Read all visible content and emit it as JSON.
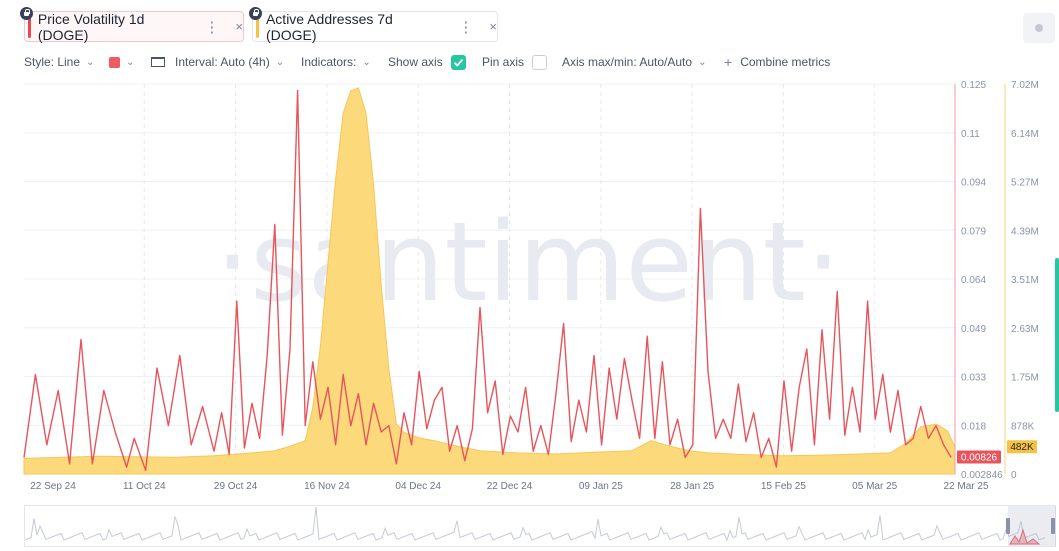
{
  "tabs": [
    {
      "label": "Price Volatility 1d (DOGE)",
      "color": "#e84a55",
      "more": "⋮",
      "close": "×"
    },
    {
      "label": "Active Addresses 7d (DOGE)",
      "color": "#f5c342",
      "more": "⋮",
      "close": "×"
    }
  ],
  "toolbar": {
    "style": "Style: Line",
    "color_swatch": "#ef5a64",
    "interval": "Interval: Auto (4h)",
    "indicators": "Indicators:",
    "show_axis": "Show axis",
    "show_axis_checked": true,
    "pin_axis": "Pin axis",
    "pin_axis_checked": false,
    "axis_maxmin": "Axis max/min: Auto/Auto",
    "combine": "Combine metrics",
    "plus": "+",
    "chevron": "⌄"
  },
  "watermark": "·santiment·",
  "chart_data": {
    "type": "line",
    "x_ticks": [
      "22 Sep 24",
      "11 Oct 24",
      "29 Oct 24",
      "16 Nov 24",
      "04 Dec 24",
      "22 Dec 24",
      "09 Jan 25",
      "28 Jan 25",
      "15 Feb 25",
      "05 Mar 25",
      "22 Mar 25"
    ],
    "series": [
      {
        "name": "Price Volatility 1d (DOGE)",
        "color": "#e8545c",
        "axis": "left",
        "y_ticks": [
          "0.125",
          "0.11",
          "0.094",
          "0.079",
          "0.064",
          "0.049",
          "0.033",
          "0.018",
          "0.002846"
        ],
        "ylim": [
          0.002846,
          0.125
        ],
        "last_value_label": "0.00826",
        "peaks": [
          [
            0,
            0.008
          ],
          [
            3,
            0.034
          ],
          [
            6,
            0.012
          ],
          [
            9,
            0.029
          ],
          [
            12,
            0.006
          ],
          [
            15,
            0.045
          ],
          [
            18,
            0.006
          ],
          [
            21,
            0.029
          ],
          [
            24,
            0.016
          ],
          [
            27,
            0.005
          ],
          [
            29,
            0.014
          ],
          [
            32,
            0.004
          ],
          [
            35,
            0.036
          ],
          [
            38,
            0.018
          ],
          [
            41,
            0.04
          ],
          [
            44,
            0.012
          ],
          [
            47,
            0.024
          ],
          [
            50,
            0.01
          ],
          [
            52,
            0.022
          ],
          [
            54,
            0.009
          ],
          [
            56,
            0.057
          ],
          [
            58,
            0.011
          ],
          [
            60,
            0.025
          ],
          [
            62,
            0.014
          ],
          [
            64,
            0.04
          ],
          [
            66,
            0.081
          ],
          [
            68,
            0.015
          ],
          [
            70,
            0.042
          ],
          [
            72,
            0.123
          ],
          [
            74,
            0.018
          ],
          [
            76,
            0.038
          ],
          [
            78,
            0.02
          ],
          [
            80,
            0.03
          ],
          [
            82,
            0.012
          ],
          [
            84,
            0.034
          ],
          [
            86,
            0.018
          ],
          [
            88,
            0.028
          ],
          [
            90,
            0.012
          ],
          [
            92,
            0.025
          ],
          [
            94,
            0.016
          ],
          [
            96,
            0.018
          ],
          [
            98,
            0.006
          ],
          [
            100,
            0.022
          ],
          [
            102,
            0.012
          ],
          [
            104,
            0.035
          ],
          [
            106,
            0.017
          ],
          [
            108,
            0.026
          ],
          [
            110,
            0.03
          ],
          [
            112,
            0.01
          ],
          [
            114,
            0.018
          ],
          [
            116,
            0.007
          ],
          [
            118,
            0.017
          ],
          [
            120,
            0.055
          ],
          [
            122,
            0.022
          ],
          [
            124,
            0.032
          ],
          [
            126,
            0.009
          ],
          [
            128,
            0.021
          ],
          [
            130,
            0.016
          ],
          [
            132,
            0.03
          ],
          [
            134,
            0.01
          ],
          [
            136,
            0.018
          ],
          [
            138,
            0.009
          ],
          [
            140,
            0.028
          ],
          [
            142,
            0.05
          ],
          [
            144,
            0.013
          ],
          [
            146,
            0.026
          ],
          [
            148,
            0.016
          ],
          [
            150,
            0.04
          ],
          [
            152,
            0.012
          ],
          [
            154,
            0.036
          ],
          [
            156,
            0.02
          ],
          [
            158,
            0.039
          ],
          [
            160,
            0.026
          ],
          [
            162,
            0.014
          ],
          [
            164,
            0.046
          ],
          [
            166,
            0.014
          ],
          [
            168,
            0.038
          ],
          [
            170,
            0.012
          ],
          [
            172,
            0.02
          ],
          [
            174,
            0.008
          ],
          [
            176,
            0.012
          ],
          [
            178,
            0.086
          ],
          [
            180,
            0.035
          ],
          [
            182,
            0.014
          ],
          [
            184,
            0.02
          ],
          [
            186,
            0.014
          ],
          [
            188,
            0.031
          ],
          [
            190,
            0.013
          ],
          [
            192,
            0.022
          ],
          [
            194,
            0.008
          ],
          [
            196,
            0.014
          ],
          [
            198,
            0.005
          ],
          [
            200,
            0.032
          ],
          [
            202,
            0.01
          ],
          [
            204,
            0.03
          ],
          [
            206,
            0.042
          ],
          [
            208,
            0.012
          ],
          [
            210,
            0.048
          ],
          [
            212,
            0.02
          ],
          [
            214,
            0.06
          ],
          [
            216,
            0.015
          ],
          [
            218,
            0.03
          ],
          [
            220,
            0.016
          ],
          [
            222,
            0.057
          ],
          [
            224,
            0.02
          ],
          [
            226,
            0.034
          ],
          [
            228,
            0.016
          ],
          [
            230,
            0.029
          ],
          [
            232,
            0.012
          ],
          [
            234,
            0.014
          ],
          [
            236,
            0.024
          ],
          [
            238,
            0.014
          ],
          [
            240,
            0.018
          ],
          [
            242,
            0.012
          ],
          [
            244,
            0.008
          ]
        ]
      },
      {
        "name": "Active Addresses 7d (DOGE)",
        "color": "#fcd97a",
        "axis": "right",
        "y_ticks": [
          "7.02M",
          "6.14M",
          "5.27M",
          "4.39M",
          "3.51M",
          "2.63M",
          "1.75M",
          "878K",
          "0"
        ],
        "ylim": [
          0,
          7020000
        ],
        "last_value_label": "482K",
        "points": [
          [
            0,
            280000
          ],
          [
            10,
            300000
          ],
          [
            20,
            320000
          ],
          [
            30,
            310000
          ],
          [
            40,
            300000
          ],
          [
            50,
            330000
          ],
          [
            60,
            380000
          ],
          [
            66,
            420000
          ],
          [
            70,
            500000
          ],
          [
            74,
            600000
          ],
          [
            76,
            1200000
          ],
          [
            78,
            2300000
          ],
          [
            80,
            3800000
          ],
          [
            82,
            5300000
          ],
          [
            84,
            6500000
          ],
          [
            86,
            6900000
          ],
          [
            88,
            6950000
          ],
          [
            90,
            6500000
          ],
          [
            92,
            5200000
          ],
          [
            94,
            3400000
          ],
          [
            96,
            1900000
          ],
          [
            98,
            900000
          ],
          [
            100,
            750000
          ],
          [
            104,
            650000
          ],
          [
            108,
            600000
          ],
          [
            114,
            500000
          ],
          [
            120,
            420000
          ],
          [
            130,
            380000
          ],
          [
            140,
            360000
          ],
          [
            150,
            390000
          ],
          [
            160,
            420000
          ],
          [
            165,
            600000
          ],
          [
            170,
            500000
          ],
          [
            175,
            420000
          ],
          [
            180,
            380000
          ],
          [
            190,
            350000
          ],
          [
            200,
            330000
          ],
          [
            210,
            340000
          ],
          [
            220,
            360000
          ],
          [
            228,
            380000
          ],
          [
            232,
            550000
          ],
          [
            236,
            850000
          ],
          [
            240,
            900000
          ],
          [
            243,
            780000
          ],
          [
            245,
            482000
          ]
        ]
      }
    ],
    "grid": true,
    "legend": "tabs-top"
  }
}
